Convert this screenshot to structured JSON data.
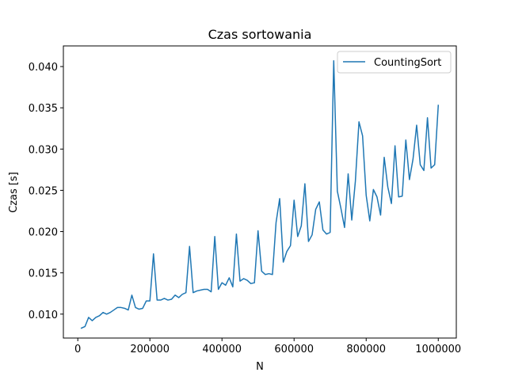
{
  "chart_data": {
    "type": "line",
    "title": "Czas sortowania",
    "xlabel": "N",
    "ylabel": "Czas [s]",
    "xlim": [
      -40000,
      1050000
    ],
    "ylim": [
      0.0071,
      0.0425
    ],
    "xticks": [
      0,
      200000,
      400000,
      600000,
      800000,
      1000000
    ],
    "xtick_labels": [
      "0",
      "200000",
      "400000",
      "600000",
      "800000",
      "1000000"
    ],
    "yticks": [
      0.01,
      0.015,
      0.02,
      0.025,
      0.03,
      0.035,
      0.04
    ],
    "ytick_labels": [
      "0.010",
      "0.015",
      "0.020",
      "0.025",
      "0.030",
      "0.035",
      "0.040"
    ],
    "grid": false,
    "legend_position": "top-right",
    "series": [
      {
        "name": "CountingSort",
        "color": "#1f77b4",
        "x": [
          10000,
          20000,
          30000,
          40000,
          50000,
          60000,
          70000,
          80000,
          90000,
          100000,
          110000,
          120000,
          130000,
          140000,
          150000,
          160000,
          170000,
          180000,
          190000,
          200000,
          210000,
          220000,
          230000,
          240000,
          250000,
          260000,
          270000,
          280000,
          290000,
          300000,
          310000,
          320000,
          330000,
          340000,
          350000,
          360000,
          370000,
          380000,
          390000,
          400000,
          410000,
          420000,
          430000,
          440000,
          450000,
          460000,
          470000,
          480000,
          490000,
          500000,
          510000,
          520000,
          530000,
          540000,
          550000,
          560000,
          570000,
          580000,
          590000,
          600000,
          610000,
          620000,
          630000,
          640000,
          650000,
          660000,
          670000,
          680000,
          690000,
          700000,
          710000,
          720000,
          730000,
          740000,
          750000,
          760000,
          770000,
          780000,
          790000,
          800000,
          810000,
          820000,
          830000,
          840000,
          850000,
          860000,
          870000,
          880000,
          890000,
          900000,
          910000,
          920000,
          930000,
          940000,
          950000,
          960000,
          970000,
          980000,
          990000,
          1000000
        ],
        "y": [
          0.0083,
          0.0085,
          0.0096,
          0.0092,
          0.0096,
          0.0098,
          0.0102,
          0.01,
          0.0102,
          0.0105,
          0.0108,
          0.0108,
          0.0107,
          0.0105,
          0.0123,
          0.0108,
          0.0106,
          0.0107,
          0.0116,
          0.0116,
          0.0173,
          0.0117,
          0.0117,
          0.0119,
          0.0117,
          0.0118,
          0.0123,
          0.012,
          0.0124,
          0.0126,
          0.0182,
          0.0126,
          0.0128,
          0.0129,
          0.013,
          0.013,
          0.0127,
          0.0194,
          0.013,
          0.0138,
          0.0135,
          0.0144,
          0.0133,
          0.0197,
          0.014,
          0.0143,
          0.0141,
          0.0137,
          0.0138,
          0.0201,
          0.0152,
          0.0148,
          0.0149,
          0.0148,
          0.0211,
          0.024,
          0.0163,
          0.0176,
          0.0183,
          0.0238,
          0.0194,
          0.0207,
          0.0258,
          0.0188,
          0.0196,
          0.0227,
          0.0236,
          0.0202,
          0.0197,
          0.0199,
          0.0407,
          0.0249,
          0.0228,
          0.0205,
          0.027,
          0.0214,
          0.0261,
          0.0333,
          0.0316,
          0.0244,
          0.0213,
          0.0251,
          0.0242,
          0.022,
          0.029,
          0.0254,
          0.0234,
          0.0304,
          0.0242,
          0.0243,
          0.0311,
          0.0263,
          0.0288,
          0.0329,
          0.0281,
          0.0274,
          0.0338,
          0.0277,
          0.0281,
          0.0353
        ]
      }
    ]
  }
}
